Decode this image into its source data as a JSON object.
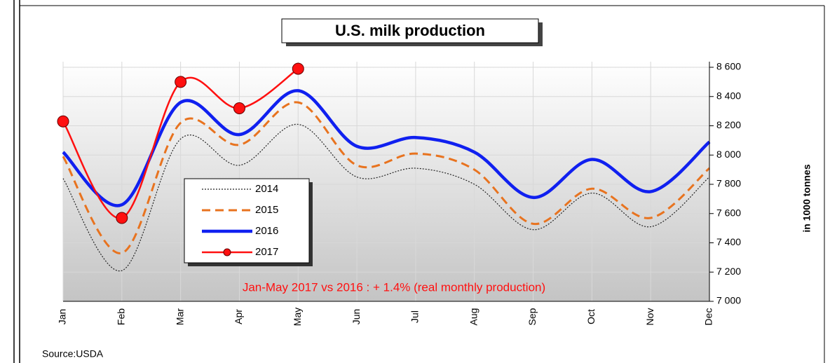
{
  "chart_data": {
    "type": "line",
    "title": "U.S. milk production",
    "categories": [
      "Jan",
      "Feb",
      "Mar",
      "Apr",
      "May",
      "Jun",
      "Jul",
      "Aug",
      "Sep",
      "Oct",
      "Nov",
      "Dec"
    ],
    "series": [
      {
        "name": "2014",
        "color": "#222222",
        "style": "dotted",
        "width": 1.2,
        "markers": false,
        "values": [
          7840,
          7210,
          8110,
          7930,
          8210,
          7850,
          7910,
          7800,
          7490,
          7740,
          7510,
          7850
        ]
      },
      {
        "name": "2015",
        "color": "#e8731f",
        "style": "dashed",
        "width": 3,
        "markers": false,
        "values": [
          7990,
          7330,
          8220,
          8070,
          8360,
          7930,
          8010,
          7900,
          7530,
          7770,
          7570,
          7910
        ]
      },
      {
        "name": "2016",
        "color": "#1020f0",
        "style": "solid",
        "width": 4.5,
        "markers": false,
        "values": [
          8020,
          7660,
          8360,
          8140,
          8440,
          8060,
          8120,
          8020,
          7710,
          7970,
          7750,
          8090
        ]
      },
      {
        "name": "2017",
        "color": "#ff1010",
        "style": "solid",
        "width": 2.5,
        "markers": true,
        "values": [
          8230,
          7570,
          8500,
          8320,
          8590,
          null,
          null,
          null,
          null,
          null,
          null,
          null
        ]
      }
    ],
    "ylim": [
      7000,
      8600
    ],
    "yticks": [
      {
        "value": 7000,
        "label": "7 000"
      },
      {
        "value": 7200,
        "label": "7 200"
      },
      {
        "value": 7400,
        "label": "7 400"
      },
      {
        "value": 7600,
        "label": "7 600"
      },
      {
        "value": 7800,
        "label": "7 800"
      },
      {
        "value": 8000,
        "label": "8 000"
      },
      {
        "value": 8200,
        "label": "8 200"
      },
      {
        "value": 8400,
        "label": "8 400"
      },
      {
        "value": 8600,
        "label": "8 600"
      }
    ],
    "y_label": "in 1000 tonnes",
    "annotation": "Jan-May 2017 vs 2016 : + 1.4%  (real monthly production)",
    "source": "Source:USDA",
    "grid": true
  }
}
